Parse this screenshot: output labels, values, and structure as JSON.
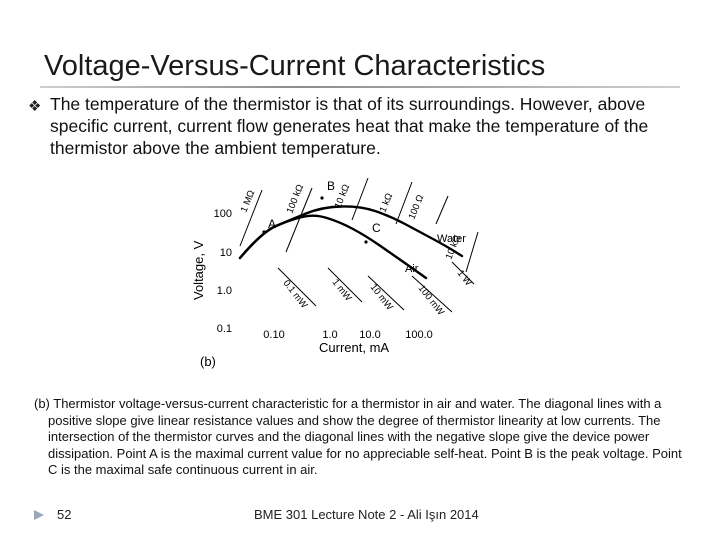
{
  "slide": {
    "title": "Voltage-Versus-Current Characteristics",
    "bullet_text": "The temperature of the thermistor is that of its surroundings. However, above specific current, current flow generates heat that make the temperature of the thermistor above the ambient temperature.",
    "caption": "(b) Thermistor voltage-versus-current characteristic for a thermistor in air and water. The diagonal lines with a positive slope give linear resistance values and show the degree of thermistor linearity at low currents. The intersection of the thermistor curves and the diagonal lines with the negative slope give the device power dissipation. Point A is the maximal current value for no appreciable self-heat. Point B is the peak voltage. Point C is the maximal safe continuous current in air.",
    "footer_page": "52",
    "footer_center": "BME 301 Lecture Note 2 - Ali Işın 2014"
  },
  "colors": {
    "title": "#1a1a1a",
    "text": "#111111",
    "curve": "#000000"
  },
  "chart_data": {
    "type": "line",
    "xlabel": "Current, mA",
    "ylabel": "Voltage, V",
    "x_scale": "log",
    "y_scale": "log",
    "x_ticks": [
      "0.10",
      "1.0",
      "10.0",
      "100.0"
    ],
    "y_ticks": [
      "100",
      "10",
      "1.0",
      "0.1"
    ],
    "panel_label": "(b)",
    "resistance_lines": [
      "1 MΩ",
      "100 kΩ",
      "10 kΩ",
      "1 kΩ",
      "100 Ω",
      "10 kΩ"
    ],
    "power_lines": [
      "0.1 mW",
      "1 mW",
      "10 mW",
      "100 mW",
      "1 W"
    ],
    "series": [
      {
        "name": "Water",
        "x": [
          0.06,
          0.3,
          0.8,
          3,
          10,
          30,
          100,
          300
        ],
        "y": [
          7,
          28,
          48,
          70,
          63,
          45,
          28,
          14
        ]
      },
      {
        "name": "Air",
        "x": [
          0.06,
          0.3,
          0.8,
          3,
          10,
          30,
          60
        ],
        "y": [
          7,
          28,
          45,
          40,
          20,
          6,
          2.5
        ]
      }
    ],
    "points": [
      {
        "label": "A",
        "x": 0.6,
        "y": 45
      },
      {
        "label": "B",
        "x": 5,
        "y": 75
      },
      {
        "label": "C",
        "x": 10,
        "y": 60
      }
    ]
  }
}
